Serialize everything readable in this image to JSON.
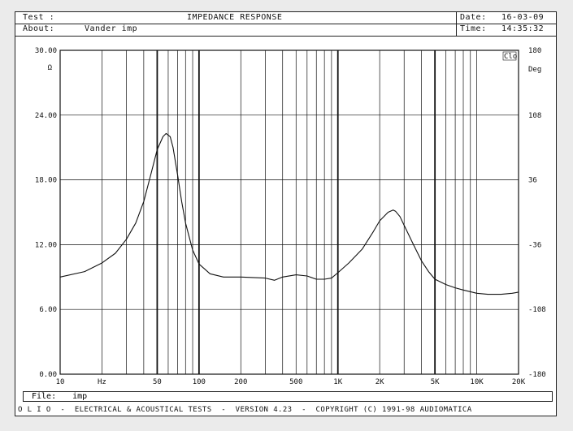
{
  "header": {
    "test_label": "Test :",
    "title": "IMPEDANCE RESPONSE",
    "date_label": "Date:",
    "date_value": "16-03-09",
    "about_label": "About:",
    "about_value": "Vander imp",
    "time_label": "Time:",
    "time_value": "14:35:32"
  },
  "file": {
    "label": "File:",
    "value": "imp"
  },
  "footer_text": "O L I O  -  ELECTRICAL & ACOUSTICAL TESTS  -  VERSION 4.23  -  COPYRIGHT (C) 1991-98 AUDIOMATICA",
  "chart_data": {
    "type": "line",
    "title": "IMPEDANCE RESPONSE",
    "x_scale": "log",
    "xlim": [
      10,
      20000
    ],
    "x_tick_labels": [
      {
        "x": 10,
        "label": "10"
      },
      {
        "x": 20,
        "label": "Hz"
      },
      {
        "x": 50,
        "label": "50"
      },
      {
        "x": 100,
        "label": "100"
      },
      {
        "x": 200,
        "label": "200"
      },
      {
        "x": 500,
        "label": "500"
      },
      {
        "x": 1000,
        "label": "1K"
      },
      {
        "x": 2000,
        "label": "2K"
      },
      {
        "x": 5000,
        "label": "5K"
      },
      {
        "x": 10000,
        "label": "10K"
      },
      {
        "x": 20000,
        "label": "20K"
      }
    ],
    "y_left": {
      "unit": "Ω",
      "ylim": [
        0,
        30
      ],
      "tick_labels": [
        "0.00",
        "6.00",
        "12.00",
        "18.00",
        "24.00",
        "30.00"
      ],
      "ticks": [
        0,
        6,
        12,
        18,
        24,
        30
      ]
    },
    "y_right": {
      "unit": "Deg",
      "ylim": [
        -180,
        180
      ],
      "tick_labels": [
        "-180",
        "-108",
        "-36",
        "36",
        "108",
        "180"
      ],
      "ticks": [
        -180,
        -108,
        -36,
        36,
        108,
        180
      ]
    },
    "legend_glyph": "Clo",
    "grid": true,
    "series": [
      {
        "axis": "left",
        "x": [
          10,
          15,
          20,
          25,
          30,
          35,
          40,
          45,
          50,
          55,
          58,
          62,
          65,
          68,
          70,
          75,
          80,
          90,
          100,
          120,
          150,
          200,
          300,
          350,
          400,
          500,
          600,
          700,
          800,
          900,
          1000,
          1200,
          1500,
          1800,
          2000,
          2300,
          2500,
          2600,
          2800,
          3000,
          3500,
          4000,
          4500,
          5000,
          6000,
          7000,
          8000,
          10000,
          12000,
          15000,
          18000,
          20000
        ],
        "y": [
          9.0,
          9.5,
          10.3,
          11.2,
          12.5,
          14.0,
          16.0,
          18.5,
          20.8,
          22.0,
          22.3,
          22.0,
          21.0,
          19.5,
          18.5,
          16.0,
          14.0,
          11.5,
          10.2,
          9.3,
          9.0,
          9.0,
          8.9,
          8.7,
          9.0,
          9.2,
          9.1,
          8.8,
          8.8,
          8.9,
          9.4,
          10.3,
          11.6,
          13.2,
          14.2,
          15.0,
          15.2,
          15.1,
          14.6,
          13.8,
          12.0,
          10.5,
          9.5,
          8.8,
          8.3,
          8.0,
          7.8,
          7.5,
          7.4,
          7.4,
          7.5,
          7.6
        ]
      }
    ]
  }
}
